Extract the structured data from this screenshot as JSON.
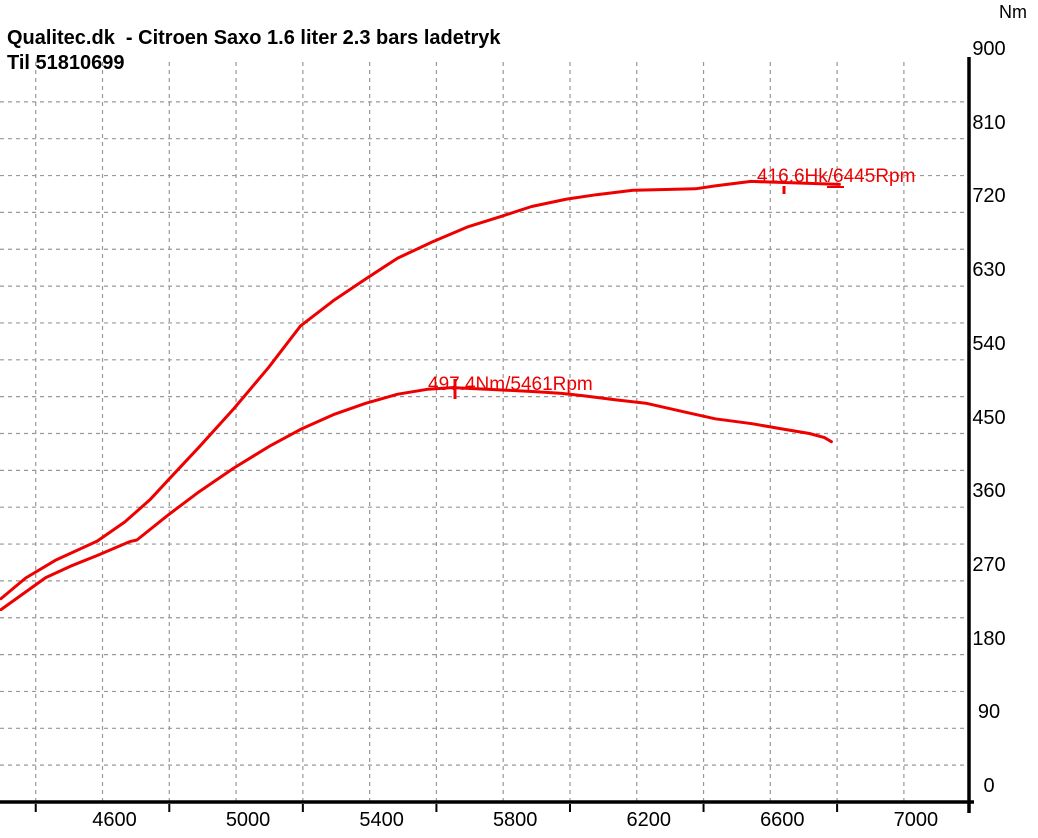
{
  "title": {
    "line1": "Qualitec.dk  - Citroen Saxo 1.6 liter 2.3 bars ladetryk",
    "line2": "Til 51810699"
  },
  "y_axis": {
    "unit_label": "Nm",
    "min": 0,
    "max": 900,
    "label_step": 90,
    "grid_step": 45
  },
  "x_axis": {
    "min": 4293,
    "max": 7195,
    "label_start": 4600,
    "label_end": 7000,
    "label_step": 400,
    "grid_start": 4400,
    "grid_end": 7000,
    "grid_step": 200,
    "tick_start": 4400,
    "tick_end": 6800,
    "tick_step": 400
  },
  "annotations": {
    "torque_peak_label": "497.4Nm/5461Rpm",
    "power_peak_label": "416.6Hk/6445Rpm"
  },
  "colors": {
    "curve_red": "#ee0000",
    "grid_gray": "#989898",
    "axis_black": "#000000"
  },
  "chart_data": {
    "type": "line",
    "title": "Qualitec.dk - Citroen Saxo 1.6 liter 2.3 bars ladetryk (Til 51810699)",
    "x_unit": "Rpm",
    "x_range": [
      4293,
      7195
    ],
    "y_unit": "Nm",
    "y_range": [
      0,
      900
    ],
    "grid": "dashed, vertical every 200 rpm, horizontal every 45 Nm",
    "legend": "none",
    "power_axis_scale": 1.8,
    "power_axis_note": "power curve in Hk is drawn against the Nm axis multiplied by 1.8",
    "series": [
      {
        "name": "power_hk",
        "peak": {
          "value": 416.6,
          "unit": "Hk",
          "rpm": 6445
        },
        "points": [
          [
            4296,
            138
          ],
          [
            4370,
            152
          ],
          [
            4459,
            164
          ],
          [
            4584,
            177
          ],
          [
            4667,
            190
          ],
          [
            4742,
            205
          ],
          [
            4795,
            218
          ],
          [
            4890,
            241
          ],
          [
            4994,
            267
          ],
          [
            5098,
            295
          ],
          [
            5193,
            323
          ],
          [
            5291,
            340
          ],
          [
            5389,
            355
          ],
          [
            5484,
            369
          ],
          [
            5588,
            380
          ],
          [
            5692,
            390
          ],
          [
            5790,
            397
          ],
          [
            5885,
            404
          ],
          [
            5990,
            409
          ],
          [
            6079,
            412
          ],
          [
            6189,
            415
          ],
          [
            6376,
            416
          ],
          [
            6435,
            418
          ],
          [
            6542,
            421
          ],
          [
            6673,
            420
          ],
          [
            6807,
            419
          ]
        ]
      },
      {
        "name": "torque_nm",
        "peak": {
          "value": 497.4,
          "unit": "Nm",
          "rpm": 5461
        },
        "points": [
          [
            4296,
            235
          ],
          [
            4430,
            274
          ],
          [
            4504,
            288
          ],
          [
            4584,
            301
          ],
          [
            4682,
            318
          ],
          [
            4703,
            320
          ],
          [
            4795,
            350
          ],
          [
            4890,
            379
          ],
          [
            4994,
            408
          ],
          [
            5098,
            434
          ],
          [
            5193,
            455
          ],
          [
            5291,
            473
          ],
          [
            5389,
            487
          ],
          [
            5484,
            498
          ],
          [
            5573,
            504
          ],
          [
            5648,
            506
          ],
          [
            5752,
            504
          ],
          [
            5900,
            501
          ],
          [
            5975,
            499
          ],
          [
            6040,
            496
          ],
          [
            6138,
            491
          ],
          [
            6227,
            487
          ],
          [
            6346,
            476
          ],
          [
            6435,
            468
          ],
          [
            6545,
            462
          ],
          [
            6643,
            455
          ],
          [
            6717,
            450
          ],
          [
            6762,
            445
          ],
          [
            6783,
            440
          ]
        ]
      }
    ]
  }
}
